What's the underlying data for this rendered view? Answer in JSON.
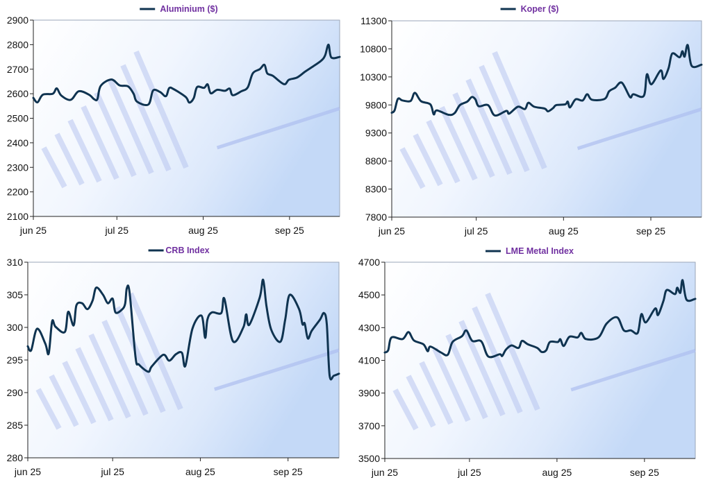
{
  "line_color": "#0f3350",
  "title_color": "#7030a0",
  "chart_data": [
    {
      "type": "line",
      "title": "Aluminium ($)",
      "legend": "Aluminium ($)",
      "legend_position": "top-center",
      "xlabel": "",
      "ylabel": "",
      "x_unit": "days from start of jun 25",
      "x_ticks": [
        {
          "x": 0,
          "label": "jun 25"
        },
        {
          "x": 30,
          "label": "jul 25"
        },
        {
          "x": 61,
          "label": "aug 25"
        },
        {
          "x": 92,
          "label": "sep 25"
        }
      ],
      "xlim": [
        0,
        110
      ],
      "ylim": [
        2100,
        2900
      ],
      "y_ticks": [
        2100,
        2200,
        2300,
        2400,
        2500,
        2600,
        2700,
        2800,
        2900
      ],
      "series": [
        {
          "name": "Aluminium ($)",
          "points": [
            [
              0,
              2583
            ],
            [
              1.5,
              2565
            ],
            [
              3.4,
              2596
            ],
            [
              7,
              2600
            ],
            [
              8.4,
              2622
            ],
            [
              10,
              2593
            ],
            [
              13.4,
              2575
            ],
            [
              16.3,
              2610
            ],
            [
              20,
              2596
            ],
            [
              21.8,
              2578
            ],
            [
              23,
              2578
            ],
            [
              24.2,
              2632
            ],
            [
              28,
              2658
            ],
            [
              31,
              2634
            ],
            [
              34,
              2630
            ],
            [
              36,
              2600
            ],
            [
              37.2,
              2568
            ],
            [
              41.3,
              2556
            ],
            [
              43,
              2613
            ],
            [
              45.5,
              2607
            ],
            [
              47.6,
              2590
            ],
            [
              48.8,
              2623
            ],
            [
              50.5,
              2618
            ],
            [
              54.7,
              2587
            ],
            [
              56,
              2564
            ],
            [
              57.6,
              2582
            ],
            [
              58.8,
              2627
            ],
            [
              61.3,
              2624
            ],
            [
              62.6,
              2638
            ],
            [
              63.7,
              2602
            ],
            [
              66,
              2616
            ],
            [
              68.8,
              2612
            ],
            [
              70.5,
              2621
            ],
            [
              71.6,
              2594
            ],
            [
              74.7,
              2610
            ],
            [
              77,
              2626
            ],
            [
              78.8,
              2683
            ],
            [
              81.3,
              2700
            ],
            [
              83,
              2718
            ],
            [
              84,
              2683
            ],
            [
              86,
              2673
            ],
            [
              90,
              2639
            ],
            [
              91.8,
              2657
            ],
            [
              94.7,
              2666
            ],
            [
              97.6,
              2690
            ],
            [
              100,
              2708
            ],
            [
              103.4,
              2735
            ],
            [
              104.8,
              2757
            ],
            [
              106,
              2800
            ],
            [
              107,
              2748
            ],
            [
              110,
              2750
            ]
          ]
        }
      ]
    },
    {
      "type": "line",
      "title": "Koper ($)",
      "legend": "Koper ($)",
      "legend_position": "top-center",
      "xlabel": "",
      "ylabel": "",
      "x_unit": "days from start of jun 25",
      "x_ticks": [
        {
          "x": 0,
          "label": "jun 25"
        },
        {
          "x": 30,
          "label": "jul 25"
        },
        {
          "x": 61,
          "label": "aug 25"
        },
        {
          "x": 92,
          "label": "sep 25"
        }
      ],
      "xlim": [
        0,
        110
      ],
      "ylim": [
        7800,
        11300
      ],
      "y_ticks": [
        7800,
        8300,
        8800,
        9300,
        9800,
        10300,
        10800,
        11300
      ],
      "series": [
        {
          "name": "Koper ($)",
          "points": [
            [
              0,
              9661
            ],
            [
              1,
              9703
            ],
            [
              2.2,
              9909
            ],
            [
              3.8,
              9880
            ],
            [
              6.7,
              9871
            ],
            [
              8.2,
              10016
            ],
            [
              10.4,
              9867
            ],
            [
              13.7,
              9810
            ],
            [
              14.9,
              9633
            ],
            [
              16,
              9703
            ],
            [
              20.2,
              9624
            ],
            [
              22.3,
              9653
            ],
            [
              24.2,
              9797
            ],
            [
              26.8,
              9859
            ],
            [
              28.4,
              9941
            ],
            [
              29.7,
              9900
            ],
            [
              30.9,
              9777
            ],
            [
              34.2,
              9797
            ],
            [
              36.6,
              9612
            ],
            [
              40.7,
              9694
            ],
            [
              41.7,
              9645
            ],
            [
              44.8,
              9768
            ],
            [
              47.3,
              9727
            ],
            [
              48.5,
              9838
            ],
            [
              50.6,
              9768
            ],
            [
              54.3,
              9735
            ],
            [
              55.5,
              9686
            ],
            [
              57.3,
              9744
            ],
            [
              58.4,
              9797
            ],
            [
              61.6,
              9810
            ],
            [
              62.5,
              9859
            ],
            [
              63.3,
              9756
            ],
            [
              65.3,
              9900
            ],
            [
              67.8,
              9880
            ],
            [
              69.4,
              9991
            ],
            [
              71.1,
              9892
            ],
            [
              75.6,
              9908
            ],
            [
              77.2,
              10044
            ],
            [
              79.3,
              10106
            ],
            [
              81.7,
              10197
            ],
            [
              84.6,
              9941
            ],
            [
              85.8,
              9991
            ],
            [
              89.5,
              9962
            ],
            [
              90.6,
              10345
            ],
            [
              92.2,
              10168
            ],
            [
              95.5,
              10415
            ],
            [
              96.5,
              10263
            ],
            [
              98.3,
              10456
            ],
            [
              99.6,
              10716
            ],
            [
              102.2,
              10650
            ],
            [
              103.2,
              10757
            ],
            [
              104,
              10662
            ],
            [
              105.1,
              10868
            ],
            [
              106.5,
              10497
            ],
            [
              110,
              10518
            ]
          ]
        }
      ]
    },
    {
      "type": "line",
      "title": "CRB Index",
      "legend": "CRB Index",
      "legend_position": "top-center",
      "xlabel": "",
      "ylabel": "",
      "x_unit": "days from start of jun 25",
      "x_ticks": [
        {
          "x": 0,
          "label": "jun 25"
        },
        {
          "x": 30,
          "label": "jul 25"
        },
        {
          "x": 61,
          "label": "aug 25"
        },
        {
          "x": 92,
          "label": "sep 25"
        }
      ],
      "xlim": [
        0,
        110
      ],
      "ylim": [
        280,
        310
      ],
      "y_ticks": [
        280,
        285,
        290,
        295,
        300,
        305,
        310
      ],
      "series": [
        {
          "name": "CRB Index",
          "points": [
            [
              0,
              297.1
            ],
            [
              1.2,
              296.5
            ],
            [
              3.3,
              299.8
            ],
            [
              6.2,
              297.5
            ],
            [
              7.4,
              296.0
            ],
            [
              8.6,
              300.9
            ],
            [
              9.8,
              300.1
            ],
            [
              13.1,
              299.3
            ],
            [
              14.3,
              302.4
            ],
            [
              16.2,
              300.3
            ],
            [
              17.2,
              303.4
            ],
            [
              19.2,
              303.7
            ],
            [
              21.1,
              302.8
            ],
            [
              22.9,
              304.1
            ],
            [
              24.2,
              306.1
            ],
            [
              26.6,
              305.0
            ],
            [
              28.3,
              303.7
            ],
            [
              30,
              304.4
            ],
            [
              31,
              302.3
            ],
            [
              33.2,
              302.7
            ],
            [
              34.4,
              303.6
            ],
            [
              35,
              306.0
            ],
            [
              36,
              305.3
            ],
            [
              38.1,
              295.4
            ],
            [
              39.3,
              294.3
            ],
            [
              42.6,
              293.2
            ],
            [
              43.8,
              294.0
            ],
            [
              47.9,
              295.8
            ],
            [
              50,
              294.9
            ],
            [
              52.4,
              295.9
            ],
            [
              54.5,
              296.1
            ],
            [
              55.7,
              294.1
            ],
            [
              58.2,
              299.8
            ],
            [
              61.4,
              301.8
            ],
            [
              62.7,
              298.4
            ],
            [
              63.5,
              301.2
            ],
            [
              65.1,
              302.3
            ],
            [
              68.4,
              302.2
            ],
            [
              69.5,
              304.4
            ],
            [
              72.5,
              297.9
            ],
            [
              76.2,
              300.0
            ],
            [
              77.2,
              302.0
            ],
            [
              78.3,
              300.4
            ],
            [
              82,
              304.6
            ],
            [
              83.2,
              307.3
            ],
            [
              84.4,
              303.2
            ],
            [
              86.1,
              299.6
            ],
            [
              89.3,
              297.8
            ],
            [
              91,
              301.2
            ],
            [
              92.6,
              305.0
            ],
            [
              95.9,
              302.8
            ],
            [
              97.1,
              300.5
            ],
            [
              97.9,
              300.6
            ],
            [
              99,
              298.3
            ],
            [
              100.4,
              299.5
            ],
            [
              103.3,
              301.2
            ],
            [
              104.7,
              302.2
            ],
            [
              105.7,
              300.5
            ],
            [
              106.7,
              292.6
            ],
            [
              108.2,
              292.6
            ],
            [
              110,
              292.9
            ]
          ]
        }
      ]
    },
    {
      "type": "line",
      "title": "LME Metal Index",
      "legend": "LME Metal Index",
      "legend_position": "top-center",
      "xlabel": "",
      "ylabel": "",
      "x_unit": "days from start of jun 25",
      "x_ticks": [
        {
          "x": 0,
          "label": "jun 25"
        },
        {
          "x": 30,
          "label": "jul 25"
        },
        {
          "x": 61,
          "label": "aug 25"
        },
        {
          "x": 92,
          "label": "sep 25"
        }
      ],
      "xlim": [
        0,
        110
      ],
      "ylim": [
        3500,
        4700
      ],
      "y_ticks": [
        3500,
        3700,
        3900,
        4100,
        4300,
        4500,
        4700
      ],
      "series": [
        {
          "name": "LME Metal Index",
          "points": [
            [
              0,
              4148
            ],
            [
              1.2,
              4162
            ],
            [
              2.4,
              4240
            ],
            [
              6.3,
              4230
            ],
            [
              8.4,
              4273
            ],
            [
              10.3,
              4222
            ],
            [
              13.7,
              4198
            ],
            [
              15.2,
              4156
            ],
            [
              16.2,
              4184
            ],
            [
              19.9,
              4148
            ],
            [
              22.3,
              4134
            ],
            [
              24,
              4212
            ],
            [
              27.3,
              4247
            ],
            [
              28.9,
              4283
            ],
            [
              31,
              4219
            ],
            [
              34.2,
              4216
            ],
            [
              36.7,
              4123
            ],
            [
              40.7,
              4137
            ],
            [
              41.6,
              4127
            ],
            [
              42.9,
              4165
            ],
            [
              44.9,
              4191
            ],
            [
              47.4,
              4176
            ],
            [
              48.6,
              4219
            ],
            [
              50.7,
              4198
            ],
            [
              54,
              4176
            ],
            [
              55.6,
              4151
            ],
            [
              57.2,
              4162
            ],
            [
              58.5,
              4212
            ],
            [
              61.3,
              4212
            ],
            [
              62.2,
              4229
            ],
            [
              63.4,
              4188
            ],
            [
              65.4,
              4244
            ],
            [
              68.3,
              4240
            ],
            [
              69.6,
              4268
            ],
            [
              71.3,
              4230
            ],
            [
              75.7,
              4240
            ],
            [
              78.6,
              4325
            ],
            [
              82.3,
              4363
            ],
            [
              84.7,
              4283
            ],
            [
              87.2,
              4283
            ],
            [
              89.6,
              4268
            ],
            [
              90.9,
              4382
            ],
            [
              92.5,
              4332
            ],
            [
              95.8,
              4417
            ],
            [
              96.8,
              4377
            ],
            [
              98.7,
              4462
            ],
            [
              99.9,
              4530
            ],
            [
              102.8,
              4505
            ],
            [
              103.6,
              4544
            ],
            [
              104.7,
              4513
            ],
            [
              105.5,
              4590
            ],
            [
              106.9,
              4471
            ],
            [
              110,
              4476
            ]
          ]
        }
      ]
    }
  ]
}
